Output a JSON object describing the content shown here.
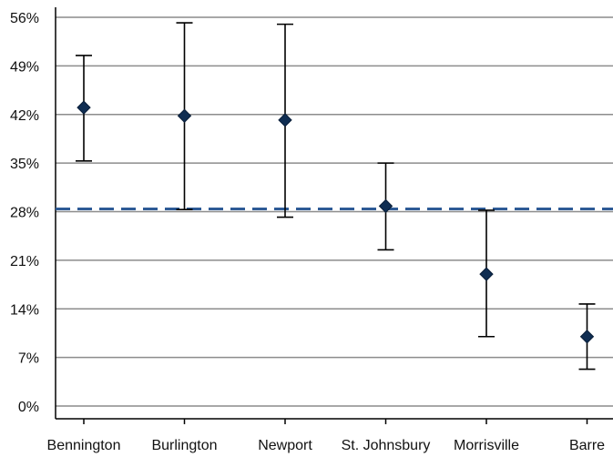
{
  "chart_data": {
    "type": "scatter",
    "title": "",
    "xlabel": "",
    "ylabel": "",
    "categories": [
      "Bennington",
      "Burlington",
      "Newport",
      "St. Johnsbury",
      "Morrisville",
      "Barre"
    ],
    "series": [
      {
        "values": [
          43.0,
          41.8,
          41.2,
          28.8,
          19.0,
          10.0
        ],
        "lower": [
          35.3,
          28.3,
          27.2,
          22.5,
          10.0,
          5.3
        ],
        "upper": [
          50.5,
          55.2,
          55.0,
          35.0,
          28.2,
          14.7
        ]
      }
    ],
    "reference_line": {
      "value": 28.4,
      "style": "dashed"
    },
    "ylim": [
      0,
      56
    ],
    "yticks": [
      0,
      7,
      14,
      21,
      28,
      35,
      42,
      49,
      56
    ],
    "ytick_labels": [
      "0%",
      "7%",
      "14%",
      "21%",
      "28%",
      "35%",
      "42%",
      "49%",
      "56%"
    ],
    "grid": true,
    "legend": "none",
    "colors": {
      "marker": "#0f2d52",
      "error_bar": "#000000",
      "reference_line": "#2e5b96",
      "grid": "#8c8c8c",
      "axis": "#000000"
    }
  }
}
